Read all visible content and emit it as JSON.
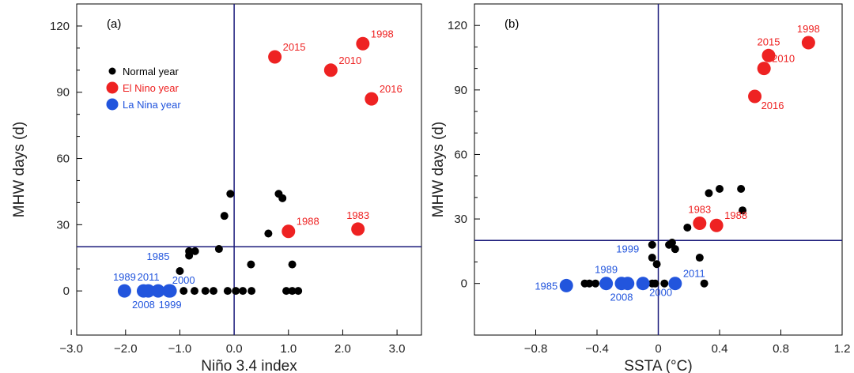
{
  "chart_data": [
    {
      "type": "scatter",
      "panel_label": "(a)",
      "xlabel": "Niño 3.4 index",
      "ylabel": "MHW days (d)",
      "xlim": [
        -2.9,
        3.45
      ],
      "ylim": [
        -20,
        130
      ],
      "xticks": [
        -3.0,
        -2.0,
        -1.0,
        0.0,
        1.0,
        2.0,
        3.0
      ],
      "xtick_labels": [
        "−3.0",
        "−2.0",
        "−1.0",
        "0.0",
        "1.0",
        "2.0",
        "3.0"
      ],
      "yticks": [
        0,
        30,
        60,
        90,
        120
      ],
      "ytick_labels": [
        "0",
        "30",
        "60",
        "90",
        "120"
      ],
      "reference_lines": {
        "x": 0,
        "y": 20
      },
      "legend": {
        "placement": "top-left",
        "entries": [
          {
            "label": "Normal year",
            "color": "#000000"
          },
          {
            "label": "El Nino year",
            "color": "#ee2222"
          },
          {
            "label": "La Nina year",
            "color": "#2255dd"
          }
        ]
      },
      "series": [
        {
          "name": "Normal year",
          "color": "#000000",
          "points": [
            [
              -0.07,
              44
            ],
            [
              0.82,
              44
            ],
            [
              0.89,
              42
            ],
            [
              -0.18,
              34
            ],
            [
              0.63,
              26
            ],
            [
              -0.28,
              19
            ],
            [
              -0.83,
              18
            ],
            [
              -0.72,
              18
            ],
            [
              -0.83,
              16
            ],
            [
              0.31,
              12
            ],
            [
              1.07,
              12
            ],
            [
              -1.0,
              9
            ],
            [
              -0.93,
              0
            ],
            [
              -0.73,
              0
            ],
            [
              -0.53,
              0
            ],
            [
              -0.38,
              0
            ],
            [
              -0.12,
              0
            ],
            [
              0.03,
              0
            ],
            [
              0.16,
              0
            ],
            [
              0.32,
              0
            ],
            [
              0.96,
              0
            ],
            [
              1.07,
              0
            ],
            [
              1.18,
              0
            ]
          ]
        },
        {
          "name": "El Nino year",
          "color": "#ee2222",
          "points": [
            {
              "x": 0.75,
              "y": 106,
              "label": "2015",
              "pos": "right"
            },
            {
              "x": 1.78,
              "y": 100,
              "label": "2010",
              "pos": "right"
            },
            {
              "x": 2.37,
              "y": 112,
              "label": "1998",
              "pos": "right"
            },
            {
              "x": 2.53,
              "y": 87,
              "label": "2016",
              "pos": "right"
            },
            {
              "x": 1.0,
              "y": 27,
              "label": "1988",
              "pos": "right"
            },
            {
              "x": 2.28,
              "y": 28,
              "label": "1983",
              "pos": "above"
            }
          ]
        },
        {
          "name": "La Nina year",
          "color": "#2255dd",
          "points": [
            {
              "x": -2.02,
              "y": 0,
              "label": "1989",
              "pos": "above"
            },
            {
              "x": -1.67,
              "y": 0,
              "label": "2008",
              "pos": "below"
            },
            {
              "x": -1.58,
              "y": 0,
              "label": "2011",
              "pos": "above"
            },
            {
              "x": -1.4,
              "y": 0,
              "label": "1985",
              "pos": "above"
            },
            {
              "x": -1.18,
              "y": 0,
              "label": "1999",
              "pos": "below"
            },
            {
              "x": -1.2,
              "y": 0,
              "label": "2000",
              "pos": "aboveright"
            }
          ]
        }
      ]
    },
    {
      "type": "scatter",
      "panel_label": "(b)",
      "xlabel": "SSTA (°C)",
      "ylabel": "MHW days (d)",
      "xlim": [
        -1.2,
        1.2
      ],
      "ylim": [
        -24,
        130
      ],
      "xticks": [
        -0.8,
        -0.4,
        0.0,
        0.4,
        0.8,
        1.2
      ],
      "xtick_labels": [
        "−0.8",
        "−0.4",
        "0",
        "0.4",
        "0.8",
        "1.2"
      ],
      "yticks": [
        0,
        30,
        60,
        90,
        120
      ],
      "ytick_labels": [
        "0",
        "30",
        "60",
        "90",
        "120"
      ],
      "reference_lines": {
        "x": 0,
        "y": 20
      },
      "series": [
        {
          "name": "Normal year",
          "color": "#000000",
          "points": [
            [
              -0.48,
              0
            ],
            [
              -0.45,
              0
            ],
            [
              -0.41,
              0
            ],
            [
              -0.04,
              0
            ],
            [
              -0.02,
              0
            ],
            [
              0.04,
              0
            ],
            [
              0.3,
              0
            ],
            [
              -0.04,
              18
            ],
            [
              -0.04,
              12
            ],
            [
              -0.01,
              9
            ],
            [
              0.07,
              18
            ],
            [
              0.09,
              19
            ],
            [
              0.11,
              16
            ],
            [
              0.27,
              12
            ],
            [
              0.19,
              26
            ],
            [
              0.33,
              42
            ],
            [
              0.4,
              44
            ],
            [
              0.54,
              44
            ],
            [
              0.55,
              34
            ]
          ]
        },
        {
          "name": "El Nino year",
          "color": "#ee2222",
          "points": [
            {
              "x": 0.98,
              "y": 112,
              "label": "1998",
              "pos": "above"
            },
            {
              "x": 0.72,
              "y": 106,
              "label": "2015",
              "pos": "above"
            },
            {
              "x": 0.69,
              "y": 100,
              "label": "2010",
              "pos": "right"
            },
            {
              "x": 0.63,
              "y": 87,
              "label": "2016",
              "pos": "belowright"
            },
            {
              "x": 0.27,
              "y": 28,
              "label": "1983",
              "pos": "above"
            },
            {
              "x": 0.38,
              "y": 27,
              "label": "1988",
              "pos": "right"
            }
          ]
        },
        {
          "name": "La Nina year",
          "color": "#2255dd",
          "points": [
            {
              "x": -0.6,
              "y": -1,
              "label": "1985",
              "pos": "left"
            },
            {
              "x": -0.34,
              "y": 0,
              "label": "1989",
              "pos": "above"
            },
            {
              "x": -0.24,
              "y": 0,
              "label": "2008",
              "pos": "below"
            },
            {
              "x": -0.2,
              "y": 0,
              "label": "1999",
              "pos": "above"
            },
            {
              "x": -0.1,
              "y": 0,
              "label": "2000",
              "pos": "belowright"
            },
            {
              "x": 0.11,
              "y": 0,
              "label": "2011",
              "pos": "right"
            }
          ]
        }
      ]
    }
  ]
}
